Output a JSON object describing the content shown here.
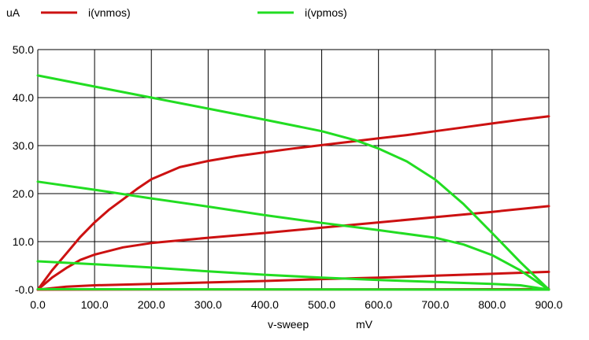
{
  "chart_data": {
    "type": "line",
    "yunit": "uA",
    "xlabel": "v-sweep",
    "xunit": "mV",
    "xlim": [
      0,
      900
    ],
    "ylim": [
      0,
      50
    ],
    "xticks": [
      "0.0",
      "100.0",
      "200.0",
      "300.0",
      "400.0",
      "500.0",
      "600.0",
      "700.0",
      "800.0",
      "900.0"
    ],
    "yticks": [
      "-0.0",
      "10.0",
      "20.0",
      "30.0",
      "40.0",
      "50.0"
    ],
    "grid": true,
    "legend": [
      {
        "name": "i(vnmos)",
        "color": "#cc1111"
      },
      {
        "name": "i(vpmos)",
        "color": "#22dd22"
      }
    ],
    "series": [
      {
        "name": "i(vnmos)",
        "color": "#cc1111",
        "x": [
          0,
          25,
          50,
          75,
          100,
          125,
          150,
          175,
          200,
          250,
          300,
          350,
          400,
          450,
          500,
          550,
          600,
          650,
          700,
          750,
          800,
          850,
          900
        ],
        "y": [
          0,
          4,
          7.5,
          11,
          14,
          16.6,
          18.8,
          21,
          23,
          25.5,
          26.8,
          27.8,
          28.6,
          29.4,
          30.1,
          30.8,
          31.5,
          32.2,
          33,
          33.8,
          34.6,
          35.4,
          36.1
        ]
      },
      {
        "name": "i(vnmos)",
        "color": "#cc1111",
        "x": [
          0,
          25,
          50,
          75,
          100,
          150,
          200,
          300,
          400,
          500,
          600,
          700,
          800,
          900
        ],
        "y": [
          0,
          2.5,
          4.5,
          6.2,
          7.3,
          8.8,
          9.7,
          10.8,
          11.8,
          12.9,
          14,
          15.1,
          16.2,
          17.4
        ]
      },
      {
        "name": "i(vnmos)",
        "color": "#cc1111",
        "x": [
          0,
          50,
          100,
          200,
          300,
          400,
          500,
          600,
          700,
          800,
          900
        ],
        "y": [
          0,
          0.6,
          0.9,
          1.2,
          1.5,
          1.8,
          2.2,
          2.5,
          2.9,
          3.3,
          3.7
        ]
      },
      {
        "name": "i(vnmos)",
        "color": "#cc1111",
        "x": [
          0,
          900
        ],
        "y": [
          0,
          0.1
        ]
      },
      {
        "name": "i(vpmos)",
        "color": "#22dd22",
        "x": [
          0,
          100,
          200,
          300,
          400,
          500,
          560,
          600,
          650,
          700,
          750,
          800,
          850,
          900
        ],
        "y": [
          44.6,
          42.3,
          40,
          37.7,
          35.4,
          33,
          31.1,
          29.4,
          26.7,
          22.9,
          17.8,
          11.8,
          5.7,
          0
        ]
      },
      {
        "name": "i(vpmos)",
        "color": "#22dd22",
        "x": [
          0,
          100,
          200,
          300,
          400,
          500,
          600,
          700,
          750,
          800,
          850,
          900
        ],
        "y": [
          22.5,
          20.8,
          19,
          17.3,
          15.5,
          13.9,
          12.4,
          10.8,
          9.4,
          7.2,
          4,
          0
        ]
      },
      {
        "name": "i(vpmos)",
        "color": "#22dd22",
        "x": [
          0,
          100,
          200,
          300,
          400,
          500,
          600,
          700,
          800,
          850,
          900
        ],
        "y": [
          5.9,
          5.3,
          4.6,
          3.8,
          3.1,
          2.5,
          2,
          1.6,
          1.2,
          0.9,
          0
        ]
      },
      {
        "name": "i(vpmos)",
        "color": "#22dd22",
        "x": [
          0,
          900
        ],
        "y": [
          0.1,
          0
        ]
      }
    ]
  }
}
